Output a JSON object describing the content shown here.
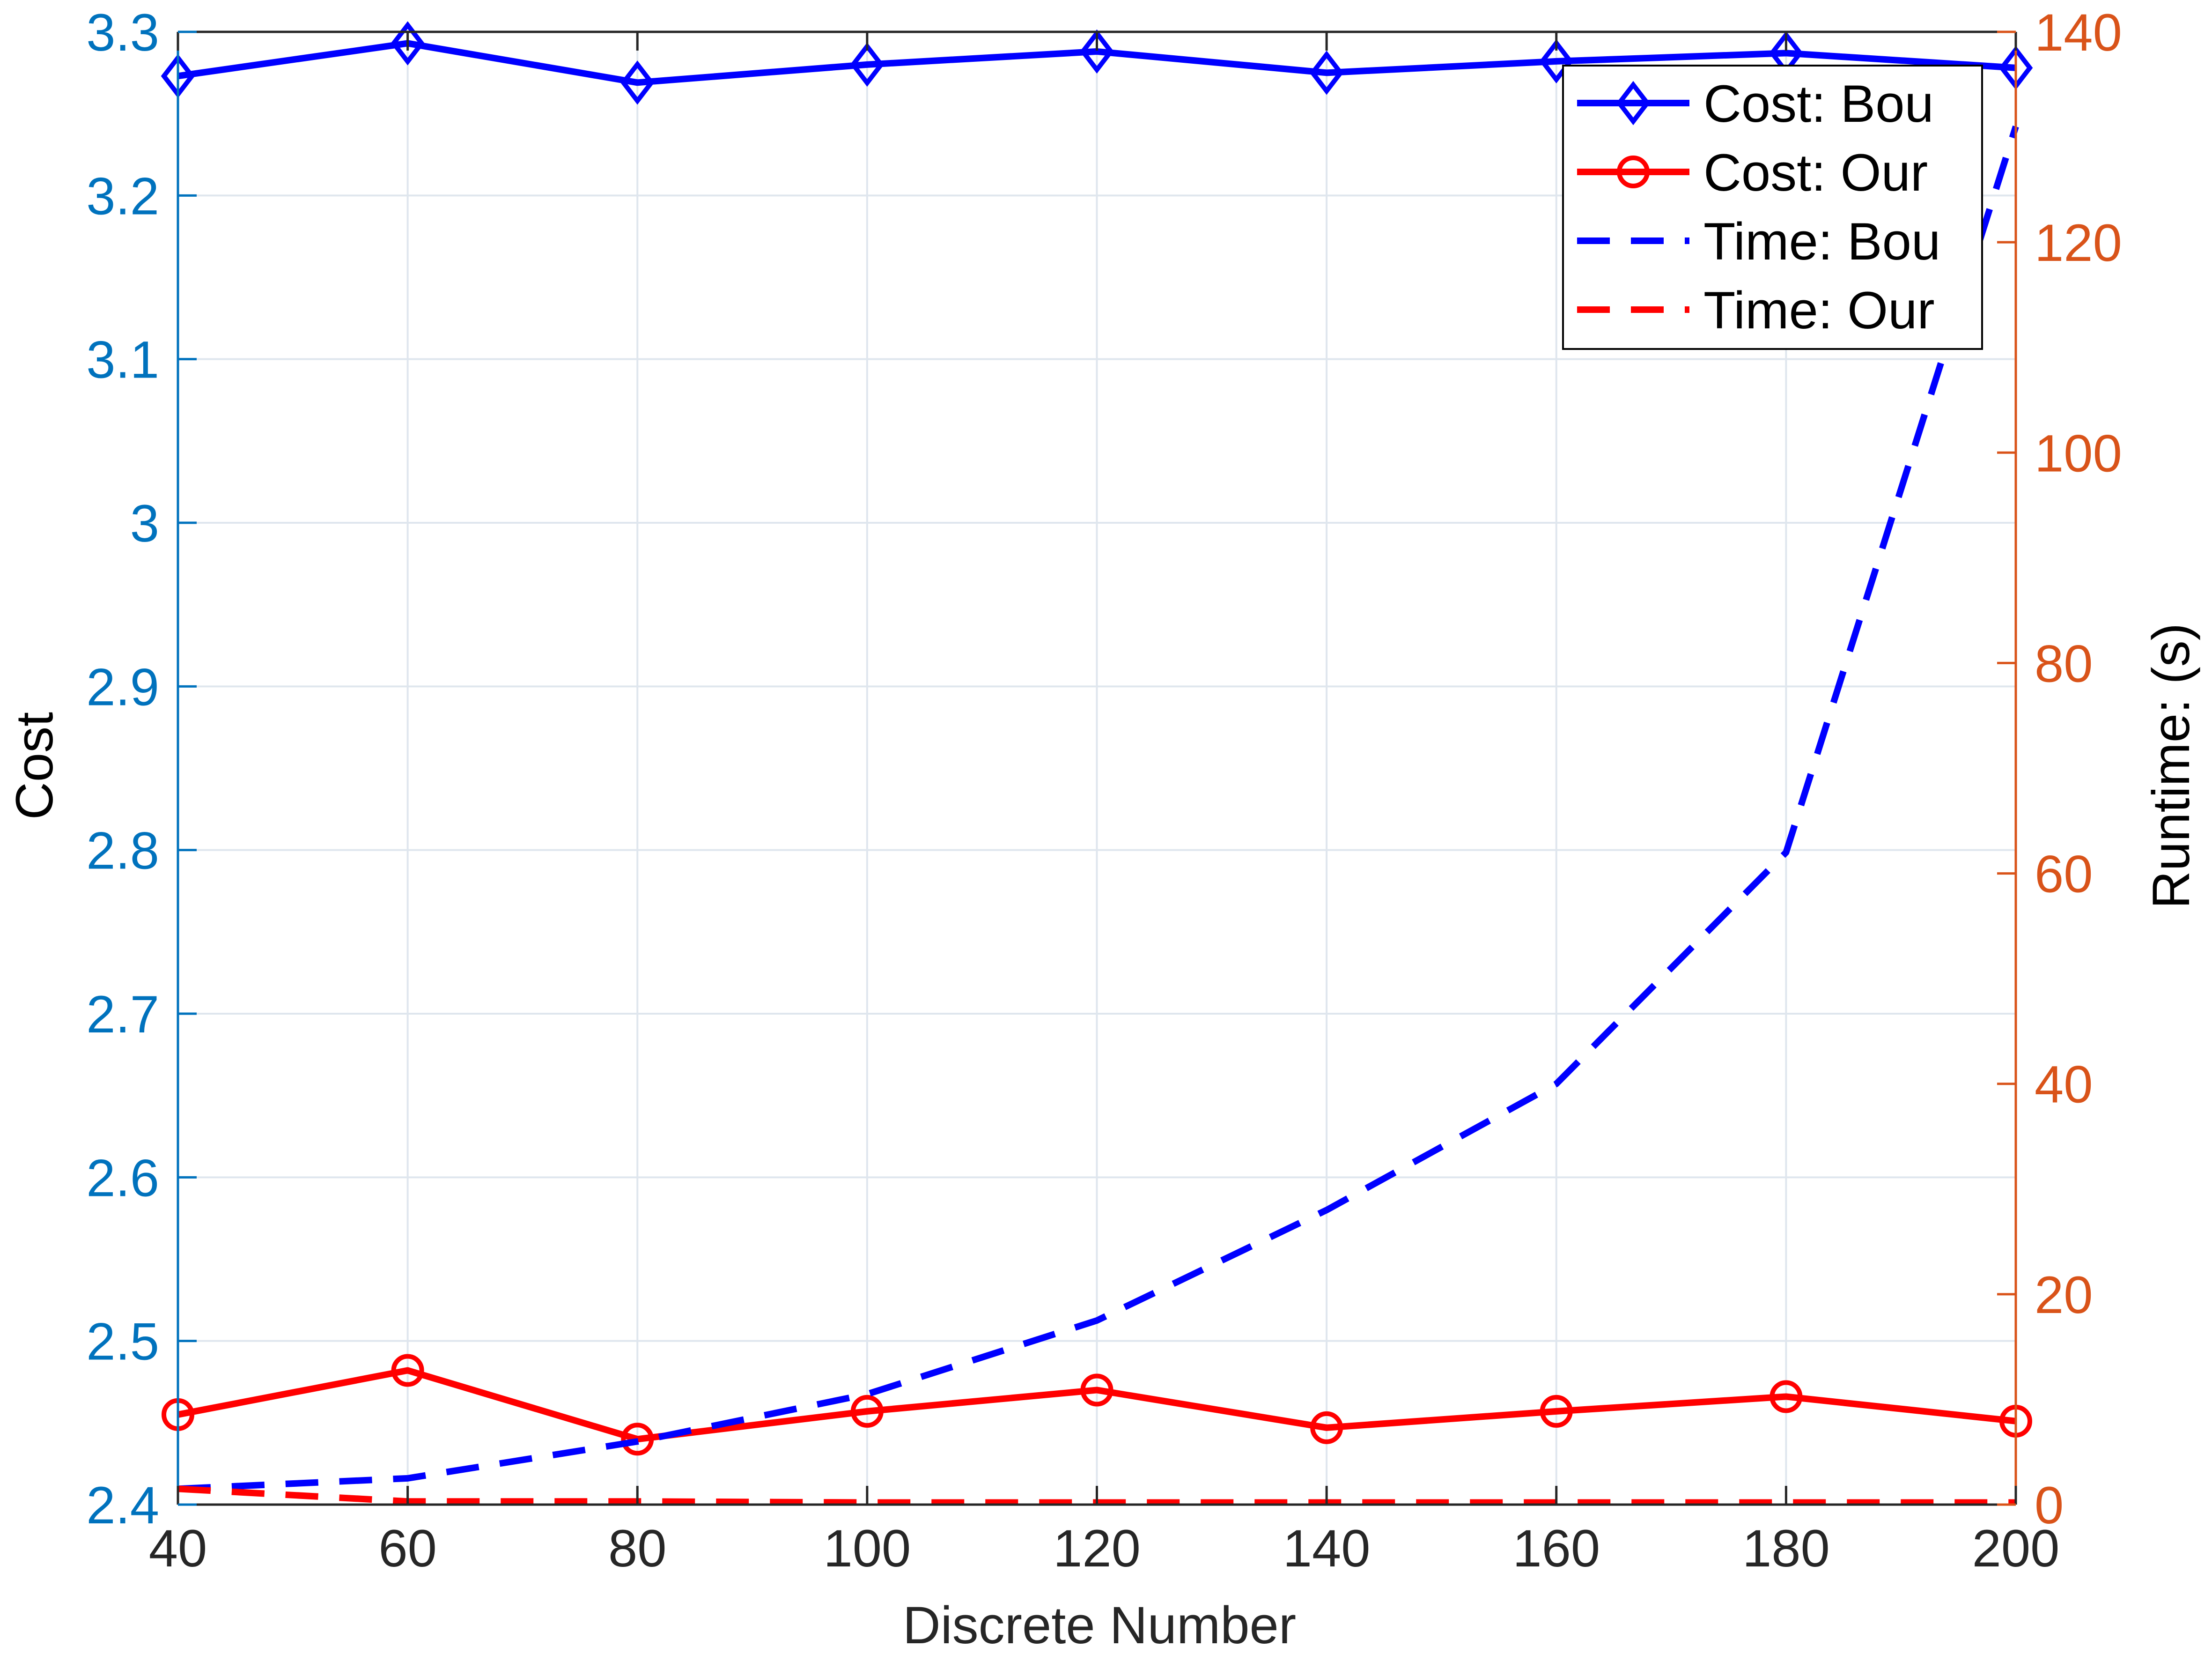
{
  "chart_data": {
    "type": "line",
    "xlabel": "Discrete Number",
    "ylabel_left": "Cost",
    "ylabel_right": "Runtime: (s)",
    "x": [
      40,
      60,
      80,
      100,
      120,
      140,
      160,
      180,
      200
    ],
    "xlim": [
      40,
      200
    ],
    "xticks": [
      40,
      60,
      80,
      100,
      120,
      140,
      160,
      180,
      200
    ],
    "ylim_left": [
      2.4,
      3.3
    ],
    "yticks_left": [
      2.4,
      2.5,
      2.6,
      2.7,
      2.8,
      2.9,
      3,
      3.1,
      3.2,
      3.3
    ],
    "yticklabels_left": [
      "2.4",
      "2.5",
      "2.6",
      "2.7",
      "2.8",
      "2.9",
      "3",
      "3.1",
      "3.2",
      "3.3"
    ],
    "ylim_right": [
      0,
      140
    ],
    "yticks_right": [
      0,
      20,
      40,
      60,
      80,
      100,
      120,
      140
    ],
    "grid": true,
    "legend_position": "top-right",
    "series": [
      {
        "name": "Cost: Bou",
        "axis": "left",
        "style": "solid",
        "marker": "diamond",
        "color": "#0000FF",
        "values": [
          3.273,
          3.293,
          3.269,
          3.28,
          3.288,
          3.275,
          3.282,
          3.287,
          3.278
        ]
      },
      {
        "name": "Cost: Our",
        "axis": "left",
        "style": "solid",
        "marker": "circle",
        "color": "#FF0000",
        "values": [
          2.455,
          2.482,
          2.44,
          2.457,
          2.47,
          2.447,
          2.457,
          2.466,
          2.451
        ]
      },
      {
        "name": "Time: Bou",
        "axis": "right",
        "style": "dashed",
        "marker": "none",
        "color": "#0000FF",
        "values": [
          1.5,
          2.5,
          6,
          10.5,
          17.5,
          28,
          40,
          62,
          131
        ]
      },
      {
        "name": "Time: Our",
        "axis": "right",
        "style": "dashed",
        "marker": "none",
        "color": "#FF0000",
        "values": [
          1.5,
          0.3,
          0.3,
          0.2,
          0.2,
          0.2,
          0.2,
          0.2,
          0.2
        ]
      }
    ],
    "colors": {
      "left_axis": "#0072BD",
      "right_axis": "#D95319",
      "x_axis": "#262626",
      "grid": "#DFE6EE"
    }
  }
}
